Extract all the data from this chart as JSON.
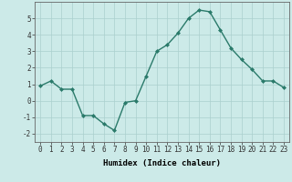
{
  "x": [
    0,
    1,
    2,
    3,
    4,
    5,
    6,
    7,
    8,
    9,
    10,
    11,
    12,
    13,
    14,
    15,
    16,
    17,
    18,
    19,
    20,
    21,
    22,
    23
  ],
  "y": [
    0.9,
    1.2,
    0.7,
    0.7,
    -0.9,
    -0.9,
    -1.4,
    -1.8,
    -0.1,
    0.0,
    1.5,
    3.0,
    3.4,
    4.1,
    5.0,
    5.5,
    5.4,
    4.3,
    3.2,
    2.5,
    1.9,
    1.2,
    1.2,
    0.8
  ],
  "line_color": "#2a7a6a",
  "marker": "D",
  "marker_size": 2,
  "line_width": 1.0,
  "bg_color": "#cceae8",
  "grid_color": "#aacfcd",
  "xlabel": "Humidex (Indice chaleur)",
  "xlim": [
    -0.5,
    23.5
  ],
  "ylim": [
    -2.5,
    6.0
  ],
  "yticks": [
    -2,
    -1,
    0,
    1,
    2,
    3,
    4,
    5
  ],
  "xticks": [
    0,
    1,
    2,
    3,
    4,
    5,
    6,
    7,
    8,
    9,
    10,
    11,
    12,
    13,
    14,
    15,
    16,
    17,
    18,
    19,
    20,
    21,
    22,
    23
  ],
  "xlabel_fontsize": 6.5,
  "tick_fontsize": 5.5
}
